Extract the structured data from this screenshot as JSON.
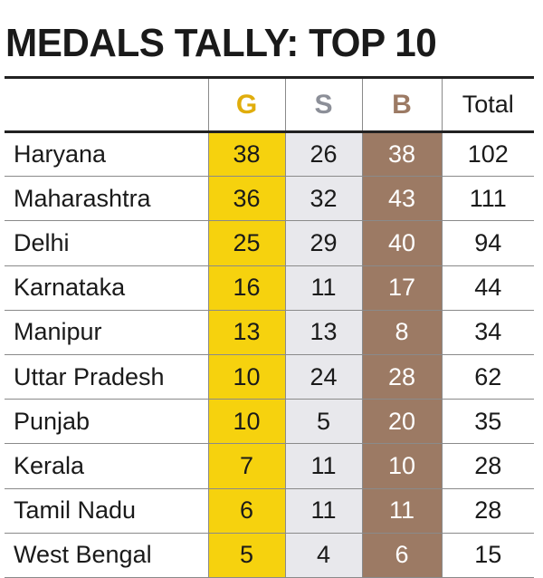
{
  "title": "MEDALS TALLY: TOP 10",
  "colors": {
    "gold": "#f6d20e",
    "gold_text": "#e0ad0c",
    "silver": "#e8e8ec",
    "silver_text": "#8c8f98",
    "bronze": "#9c7a64",
    "bronze_text": "#9c7a64"
  },
  "chart_data": {
    "type": "table",
    "columns": [
      "",
      "G",
      "S",
      "B",
      "Total"
    ],
    "rows": [
      {
        "state": "Haryana",
        "G": "38",
        "S": "26",
        "B": "38",
        "Total": "102"
      },
      {
        "state": "Maharashtra",
        "G": "36",
        "S": "32",
        "B": "43",
        "Total": "111"
      },
      {
        "state": "Delhi",
        "G": "25",
        "S": "29",
        "B": "40",
        "Total": "94"
      },
      {
        "state": "Karnataka",
        "G": "16",
        "S": "11",
        "B": "17",
        "Total": "44"
      },
      {
        "state": "Manipur",
        "G": "13",
        "S": "13",
        "B": "8",
        "Total": "34"
      },
      {
        "state": "Uttar Pradesh",
        "G": "10",
        "S": "24",
        "B": "28",
        "Total": "62"
      },
      {
        "state": "Punjab",
        "G": "10",
        "S": "5",
        "B": "20",
        "Total": "35"
      },
      {
        "state": "Kerala",
        "G": "7",
        "S": "11",
        "B": "10",
        "Total": "28"
      },
      {
        "state": "Tamil Nadu",
        "G": "6",
        "S": "11",
        "B": "11",
        "Total": "28"
      },
      {
        "state": "West Bengal",
        "G": "5",
        "S": "4",
        "B": "6",
        "Total": "15"
      }
    ]
  }
}
